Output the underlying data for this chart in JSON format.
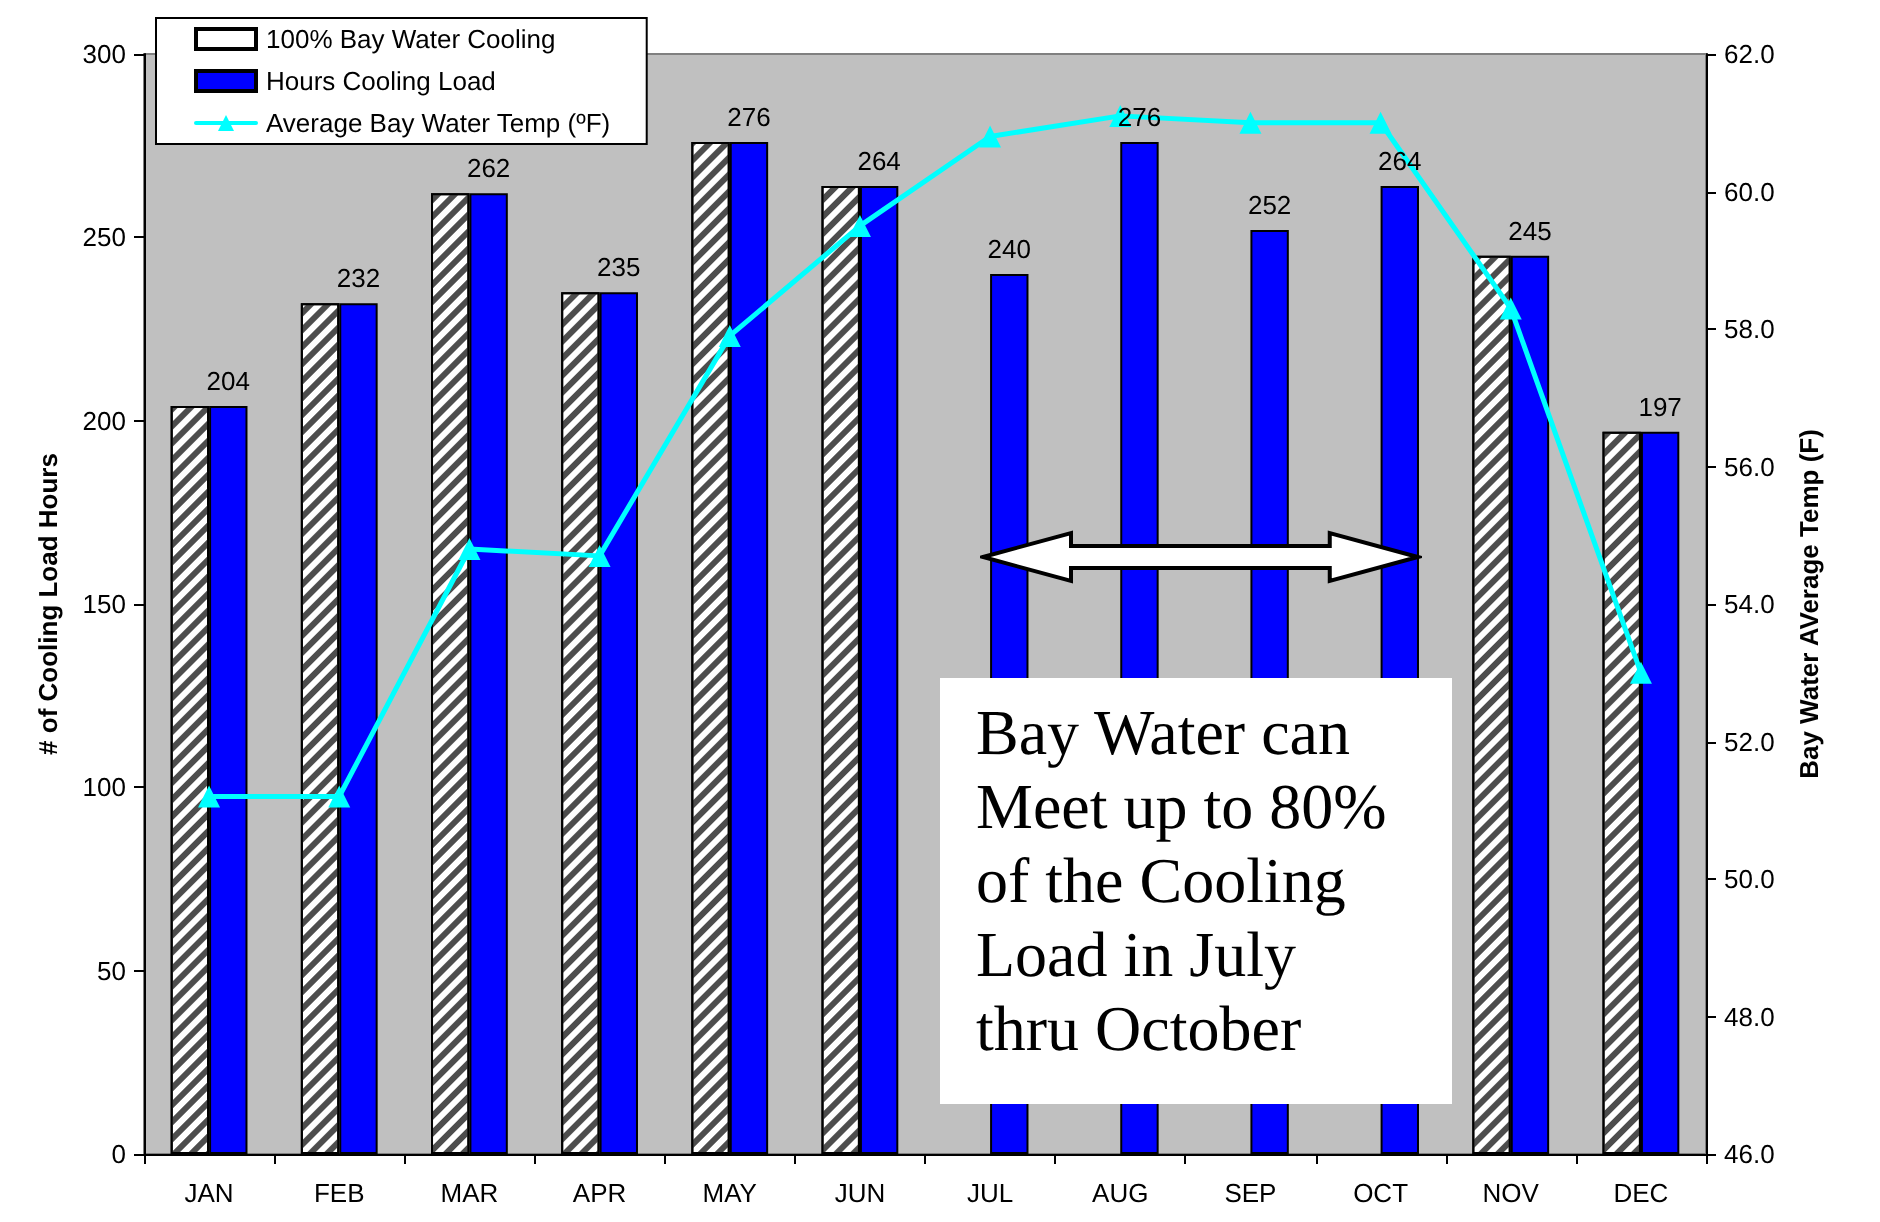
{
  "chart_data": {
    "type": "bar",
    "ylabel": "# of Cooling Load Hours",
    "y2label": "Bay Water AVerage Temp (F)",
    "annotations": [
      "Bay Water can\nMeet up to 80%\nof the Cooling\nLoad in July\nthru October"
    ],
    "categories": [
      "JAN",
      "FEB",
      "MAR",
      "APR",
      "MAY",
      "JUN",
      "JUL",
      "AUG",
      "SEP",
      "OCT",
      "NOV",
      "DEC"
    ],
    "series": [
      {
        "name": "100% Bay Water Cooling",
        "color": "#ffffff",
        "values": [
          204,
          232,
          262,
          235,
          276,
          264,
          null,
          null,
          null,
          null,
          245,
          197
        ]
      },
      {
        "name": "Hours Cooling Load",
        "color": "#0000ff",
        "values": [
          204,
          232,
          262,
          235,
          276,
          264,
          240,
          276,
          252,
          264,
          245,
          197
        ],
        "value_labels": [
          "204",
          "232",
          "262",
          "235",
          "276",
          "264",
          "240",
          "276",
          "252",
          "264",
          "245",
          "197"
        ]
      },
      {
        "name": "Average Bay Water Temp (ºF)",
        "type": "line",
        "axis": "y2",
        "color": "#00ffff",
        "values": [
          51.2,
          51.2,
          54.8,
          54.7,
          57.9,
          59.5,
          60.8,
          61.1,
          61.0,
          61.0,
          58.3,
          53.0
        ]
      }
    ],
    "ylim": [
      0,
      300
    ],
    "yticks": [
      0,
      50,
      100,
      150,
      200,
      250,
      300
    ],
    "y2lim": [
      46,
      62
    ],
    "y2ticks": [
      {
        "value": 46,
        "label": "46.0"
      },
      {
        "value": 48,
        "label": "48.0"
      },
      {
        "value": 50,
        "label": "50.0"
      },
      {
        "value": 52,
        "label": "52.0"
      },
      {
        "value": 54,
        "label": "54.0"
      },
      {
        "value": 56,
        "label": "56.0"
      },
      {
        "value": 58,
        "label": "58.0"
      },
      {
        "value": 60,
        "label": "60.0"
      },
      {
        "value": 62,
        "label": "62.0"
      }
    ],
    "legend": "top left",
    "marker": "triangle"
  }
}
